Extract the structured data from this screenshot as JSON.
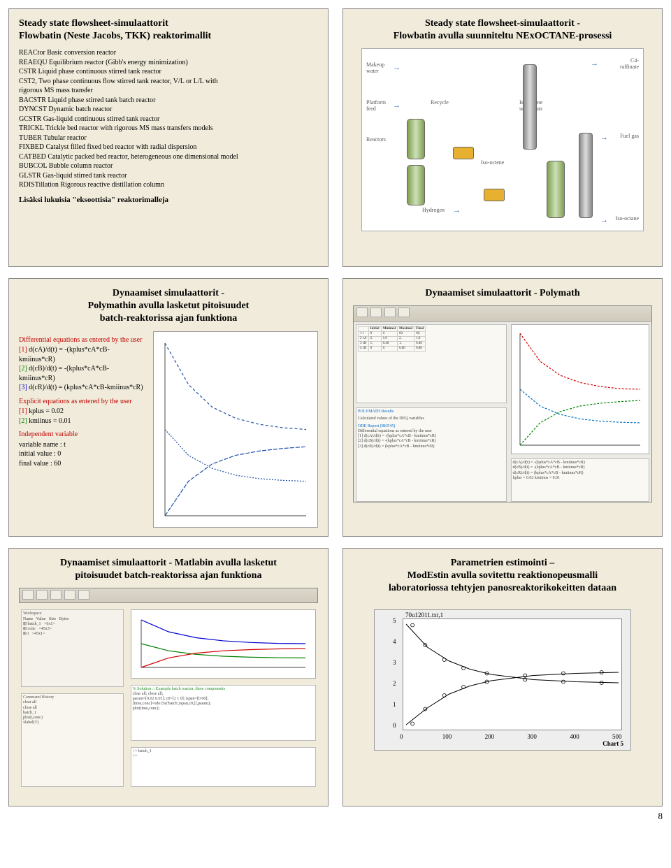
{
  "page_number": "8",
  "slide1": {
    "title_l1": "Steady state flowsheet-simulaattorit",
    "title_l2": "Flowbatin (Neste Jacobs, TKK) reaktorimallit",
    "reactors": [
      "REACtor Basic conversion reactor",
      "REAEQU Equilibrium reactor (Gibb's energy minimization)",
      "CSTR Liquid phase continuous stirred tank reactor",
      "CST2, Two phase continuous flow stirred tank reactor, V/L or L/L with",
      "        rigorous MS mass transfer",
      "BACSTR Liquid phase stirred tank batch reactor",
      "DYNCST Dynamic batch reactor",
      "GCSTR Gas-liquid continuous stirred tank reactor",
      "TRICKL Trickle bed reactor with rigorous MS mass transfers models",
      "TUBER Tubular reactor",
      "FIXBED Catalyst filled fixed bed reactor with radial dispersion",
      "CATBED Catalytic packed bed reactor, heterogeneous one dimensional model",
      "BUBCOL Bubble column reactor",
      "GLSTR Gas-liquid stirred tank reactor",
      "RDISTillation Rigorous reactive distillation column"
    ],
    "addendum": "Lisäksi lukuisia \"eksoottisia\" reaktorimalleja"
  },
  "slide2": {
    "title_l1": "Steady state flowsheet-simulaattorit -",
    "title_l2": "Flowbatin avulla suunniteltu NExOCTANE-prosessi",
    "labels": {
      "makeup": "Makeup\nwater",
      "platform": "Platform\nfeed",
      "reactors": "Reactors",
      "recycle": "Recycle",
      "hydrogen": "Hydrogen",
      "isooct": "Iso-octene",
      "isooctane": "Iso-octane",
      "fuelgas": "Fuel gas",
      "c4raff": "C4-\nraffinate",
      "separation": "Iso-octene\nseparation"
    }
  },
  "slide3": {
    "title_l1": "Dynaamiset simulaattorit -",
    "title_l2": "Polymathin avulla lasketut pitoisuudet",
    "title_l3": "batch-reaktorissa ajan funktiona",
    "diff_head": "Differential equations as entered by the user",
    "diff1_idx": "[1]",
    "diff1": "d(cA)/d(t) = -(kplus*cA*cB-kmiinus*cR)",
    "diff2_idx": "[2]",
    "diff2": "d(cB)/d(t) = -(kplus*cA*cB-kmiinus*cR)",
    "diff3_idx": "[3]",
    "diff3": "d(cR)/d(t) = (kplus*cA*cB-kmiinus*cR)",
    "expl_head": "Explicit equations as entered by the user",
    "expl1_idx": "[1]",
    "expl1": "kplus = 0.02",
    "expl2_idx": "[2]",
    "expl2": "kmiinus = 0.01",
    "indep_head": "Independent variable",
    "indep1": "variable name : t",
    "indep2": "initial value : 0",
    "indep3": "final value : 60",
    "chart": {
      "type": "line",
      "xlim": [
        0,
        60
      ],
      "ylim": [
        0,
        2
      ],
      "background_color": "#ffffff",
      "axis_color": "#000000",
      "series": [
        {
          "name": "cA",
          "color": "#1f4fa8",
          "dash": "4 3",
          "points": [
            [
              0,
              2.0
            ],
            [
              10,
              1.52
            ],
            [
              20,
              1.26
            ],
            [
              30,
              1.13
            ],
            [
              40,
              1.06
            ],
            [
              50,
              1.02
            ],
            [
              60,
              1.0
            ]
          ]
        },
        {
          "name": "cB",
          "color": "#1f4fa8",
          "dash": "2 2",
          "points": [
            [
              0,
              1.0
            ],
            [
              10,
              0.7
            ],
            [
              20,
              0.55
            ],
            [
              30,
              0.47
            ],
            [
              40,
              0.43
            ],
            [
              50,
              0.41
            ],
            [
              60,
              0.4
            ]
          ]
        },
        {
          "name": "cR",
          "color": "#1f4fa8",
          "dash": "6 2",
          "points": [
            [
              0,
              0.0
            ],
            [
              10,
              0.4
            ],
            [
              20,
              0.6
            ],
            [
              30,
              0.7
            ],
            [
              40,
              0.75
            ],
            [
              50,
              0.78
            ],
            [
              60,
              0.8
            ]
          ]
        }
      ]
    }
  },
  "slide4": {
    "title": "Dynaamiset simulaattorit - Polymath",
    "table_head": [
      "",
      "Initial",
      "Minimal",
      "Maximal",
      "Final"
    ],
    "table_rows": [
      [
        "1 t",
        "0",
        "0",
        "60.",
        "60."
      ],
      [
        "2 cA",
        "2.",
        "1.0",
        "2.",
        "1.0"
      ],
      [
        "3 cB",
        "1.",
        "0.40",
        "1.",
        "0.40"
      ],
      [
        "4 cR",
        "0",
        "0",
        "0.80",
        "0.80"
      ]
    ],
    "chart": {
      "type": "line",
      "background_color": "#ffffff",
      "series_colors": [
        "#d00000",
        "#0070c0",
        "#008000"
      ]
    }
  },
  "slide5": {
    "title_l1": "Dynaamiset simulaattorit - Matlabin avulla lasketut",
    "title_l2": "pitoisuudet batch-reaktorissa ajan funktiona",
    "chart": {
      "type": "line",
      "xlim": [
        0,
        60
      ],
      "ylim": [
        0,
        2
      ],
      "colors": [
        "#0000d0",
        "#008000",
        "#d00000"
      ]
    }
  },
  "slide6": {
    "title_l1": "Parametrien estimointi –",
    "title_l2": "ModEstin avulla sovitettu reaktionopeusmalli",
    "title_l3": "laboratoriossa tehtyjen panosreaktorikokeitten dataan",
    "chart": {
      "type": "scatter+line",
      "title": "70u12011.txt,1",
      "xlim": [
        0,
        500
      ],
      "ylim": [
        0,
        5
      ],
      "xticks": [
        0,
        100,
        200,
        300,
        400,
        500
      ],
      "yticks": [
        0,
        1,
        2,
        3,
        4,
        5
      ],
      "background_color": "#ffffff",
      "grid_color": "#ffffff",
      "marker": "circle",
      "marker_color": "none",
      "marker_edge": "#000000",
      "line_color": "#000000",
      "series": [
        {
          "fit": [
            [
              0,
              4.9
            ],
            [
              50,
              3.8
            ],
            [
              100,
              3.15
            ],
            [
              150,
              2.75
            ],
            [
              200,
              2.5
            ],
            [
              300,
              2.25
            ],
            [
              400,
              2.15
            ],
            [
              500,
              2.1
            ]
          ],
          "pts": [
            [
              15,
              4.85
            ],
            [
              45,
              3.9
            ],
            [
              90,
              3.2
            ],
            [
              135,
              2.8
            ],
            [
              190,
              2.55
            ],
            [
              280,
              2.25
            ],
            [
              370,
              2.15
            ],
            [
              460,
              2.1
            ]
          ]
        },
        {
          "fit": [
            [
              0,
              0.1
            ],
            [
              50,
              0.9
            ],
            [
              100,
              1.55
            ],
            [
              150,
              1.95
            ],
            [
              200,
              2.2
            ],
            [
              300,
              2.45
            ],
            [
              400,
              2.55
            ],
            [
              500,
              2.6
            ]
          ],
          "pts": [
            [
              15,
              0.15
            ],
            [
              45,
              0.85
            ],
            [
              90,
              1.5
            ],
            [
              135,
              1.9
            ],
            [
              190,
              2.15
            ],
            [
              280,
              2.45
            ],
            [
              370,
              2.55
            ],
            [
              460,
              2.6
            ]
          ]
        }
      ],
      "chart_label": "Chart 5"
    }
  }
}
